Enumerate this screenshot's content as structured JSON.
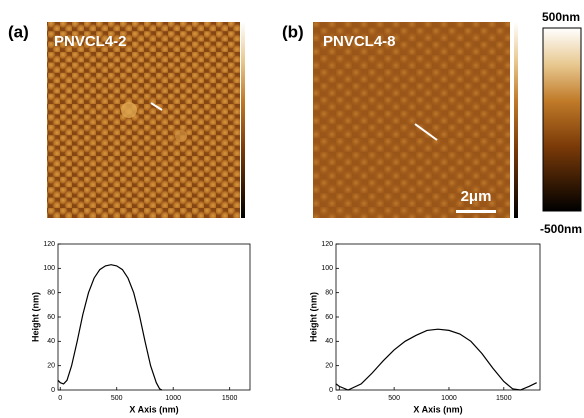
{
  "panels": [
    {
      "label": "(a)",
      "title": "PNVCL4-2"
    },
    {
      "label": "(b)",
      "title": "PNVCL4-8",
      "scale_bar": "2μm"
    }
  ],
  "colorbar": {
    "max_label": "500nm",
    "min_label": "-500nm"
  },
  "chart_data": [
    {
      "type": "line",
      "xlabel": "X Axis (nm)",
      "ylabel": "Height (nm)",
      "color": "#000000",
      "x": [
        -20,
        0,
        30,
        60,
        100,
        150,
        200,
        250,
        300,
        350,
        400,
        450,
        500,
        550,
        600,
        650,
        700,
        750,
        800,
        850,
        880,
        900
      ],
      "values": [
        8,
        6,
        5,
        8,
        20,
        40,
        62,
        80,
        92,
        99,
        102,
        103,
        102,
        99,
        92,
        80,
        62,
        40,
        20,
        6,
        1,
        0
      ],
      "xlim": [
        -20,
        1680
      ],
      "ylim": [
        0,
        120
      ],
      "xticks": [
        0,
        500,
        1000,
        1500
      ],
      "yticks": [
        0,
        20,
        40,
        60,
        80,
        100,
        120
      ]
    },
    {
      "type": "line",
      "xlabel": "X Axis (nm)",
      "ylabel": "Height (nm)",
      "color": "#000000",
      "x": [
        -30,
        0,
        80,
        200,
        300,
        400,
        500,
        600,
        700,
        800,
        900,
        1000,
        1100,
        1200,
        1300,
        1400,
        1500,
        1580,
        1650,
        1730,
        1800
      ],
      "values": [
        5,
        3,
        0,
        5,
        14,
        24,
        33,
        40,
        45,
        49,
        50,
        49,
        46,
        40,
        30,
        18,
        7,
        1,
        0,
        3,
        6
      ],
      "xlim": [
        -30,
        1830
      ],
      "ylim": [
        0,
        120
      ],
      "xticks": [
        0,
        500,
        1000,
        1500
      ],
      "yticks": [
        0,
        20,
        40,
        60,
        80,
        100,
        120
      ]
    }
  ]
}
